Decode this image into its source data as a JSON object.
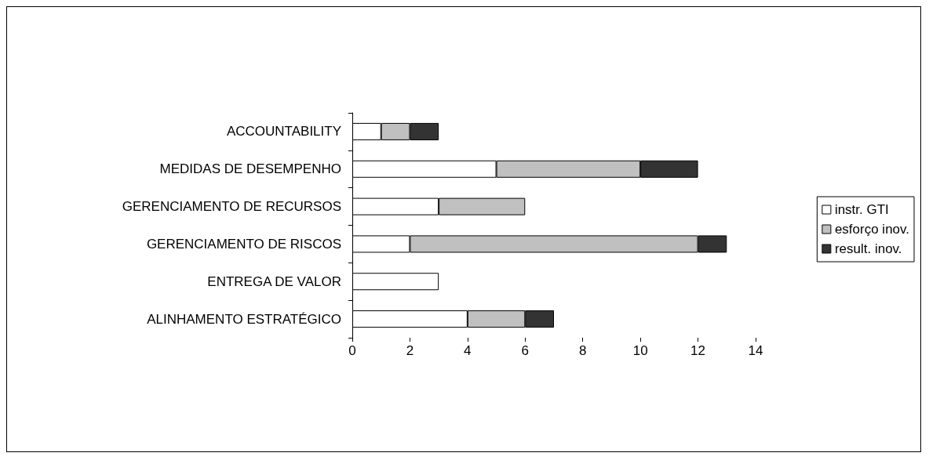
{
  "chart_data": {
    "type": "bar",
    "orientation": "horizontal",
    "stacked": true,
    "categories": [
      "ACCOUNTABILITY",
      "MEDIDAS DE DESEMPENHO",
      "GERENCIAMENTO DE RECURSOS",
      "GERENCIAMENTO DE RISCOS",
      "ENTREGA DE VALOR",
      "ALINHAMENTO ESTRATÉGICO"
    ],
    "series": [
      {
        "name": "instr. GTI",
        "color": "#ffffff",
        "values": [
          1,
          5,
          3,
          2,
          3,
          4
        ]
      },
      {
        "name": "esforço inov.",
        "color": "#c0c0c0",
        "values": [
          1,
          5,
          3,
          10,
          0,
          2
        ]
      },
      {
        "name": "result. inov.",
        "color": "#333333",
        "values": [
          1,
          2,
          0,
          1,
          0,
          1
        ]
      }
    ],
    "xlim": [
      0,
      14
    ],
    "xticks": [
      0,
      2,
      4,
      6,
      8,
      10,
      12,
      14
    ],
    "grid": false,
    "legend": "right"
  }
}
